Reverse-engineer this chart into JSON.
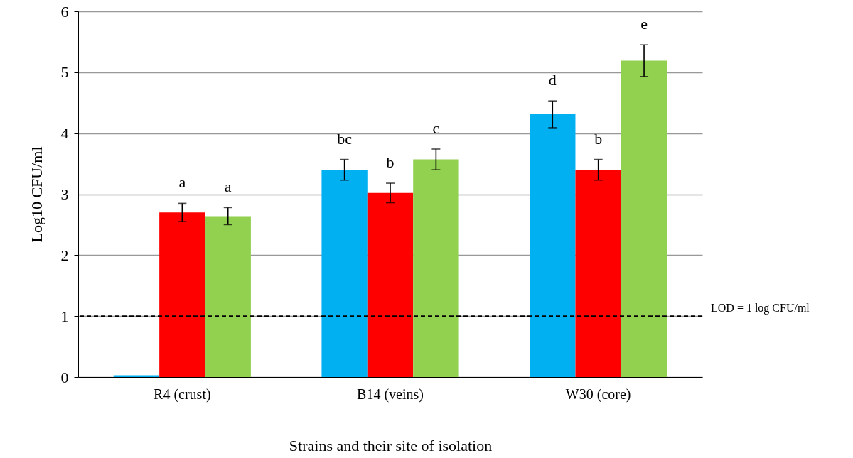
{
  "chart_data": {
    "type": "bar",
    "xlabel": "Strains and their site of isolation",
    "ylabel": "Log10 CFU/ml",
    "categories": [
      "R4 (crust)",
      "B14 (veins)",
      "W30 (core)"
    ],
    "series": [
      {
        "color": "#00b0f0",
        "values": [
          0.03,
          3.4,
          4.31
        ],
        "errors": [
          null,
          0.17,
          0.22
        ],
        "value_labels": [
          null,
          "bc",
          "d"
        ]
      },
      {
        "color": "#ff0000",
        "values": [
          2.7,
          3.02,
          3.4
        ],
        "errors": [
          0.15,
          0.16,
          0.17
        ],
        "value_labels": [
          "a",
          "b",
          "b"
        ]
      },
      {
        "color": "#92d050",
        "values": [
          2.64,
          3.57,
          5.19
        ],
        "errors": [
          0.14,
          0.17,
          0.26
        ],
        "value_labels": [
          "a",
          "c",
          "e"
        ]
      }
    ],
    "ylim": [
      0,
      6
    ],
    "yticks": [
      0,
      1,
      2,
      3,
      4,
      5,
      6
    ],
    "grid": "y",
    "legend": false,
    "ref_lines": [
      {
        "axis": "y",
        "value": 1,
        "label": "LOD = 1 log CFU/ml",
        "line_style": "dashed"
      }
    ]
  }
}
